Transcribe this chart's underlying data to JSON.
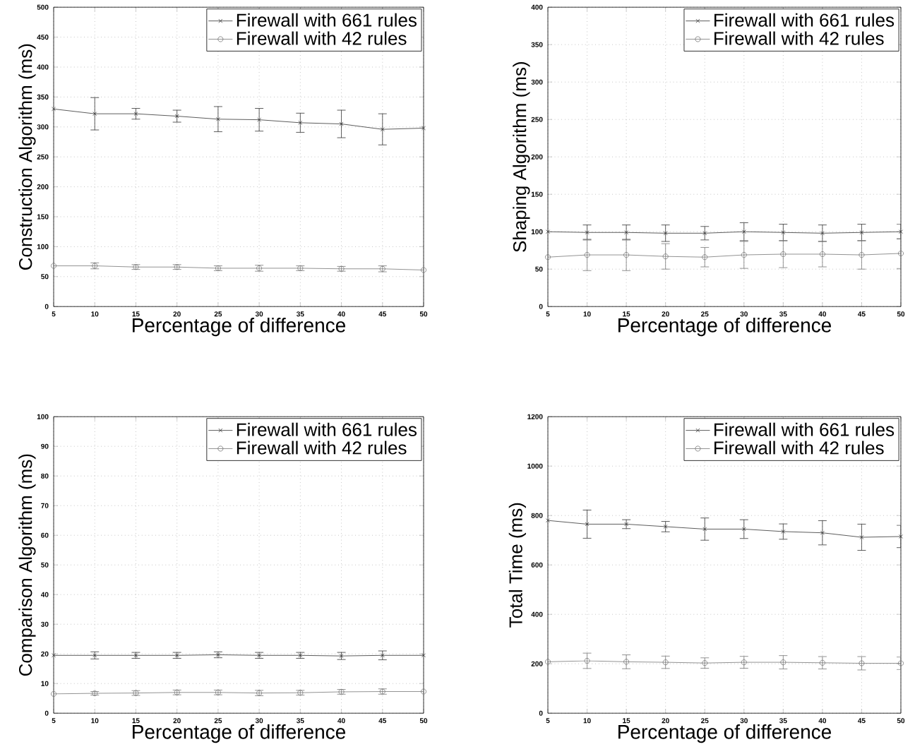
{
  "chart_data": [
    {
      "type": "line",
      "xlabel": "Percentage of difference",
      "ylabel": "Construction Algorithm (ms)",
      "x": [
        5,
        10,
        15,
        20,
        25,
        30,
        35,
        40,
        45,
        50
      ],
      "xlim": [
        5,
        50
      ],
      "xticks": [
        5,
        10,
        15,
        20,
        25,
        30,
        35,
        40,
        45,
        50
      ],
      "ylim": [
        0,
        500
      ],
      "yticks": [
        0,
        50,
        100,
        150,
        200,
        250,
        300,
        350,
        400,
        450,
        500
      ],
      "grid": true,
      "legend": "top right",
      "series": [
        {
          "name": "Firewall with 661 rules",
          "color": "#333333",
          "marker": "cross",
          "values": [
            330,
            322,
            322,
            318,
            313,
            312,
            307,
            305,
            296,
            298
          ],
          "errors": [
            null,
            27,
            9,
            10,
            21,
            19,
            16,
            23,
            26,
            null
          ]
        },
        {
          "name": "Firewall with 42 rules",
          "color": "#777777",
          "marker": "circle",
          "values": [
            68,
            68,
            66,
            66,
            64,
            64,
            64,
            63,
            63,
            61
          ],
          "errors": [
            null,
            5,
            4,
            4,
            4,
            5,
            4,
            4,
            5,
            null
          ]
        }
      ]
    },
    {
      "type": "line",
      "xlabel": "Percentage of difference",
      "ylabel": "Shaping Algorithm (ms)",
      "x": [
        5,
        10,
        15,
        20,
        25,
        30,
        35,
        40,
        45,
        50
      ],
      "xlim": [
        5,
        50
      ],
      "xticks": [
        5,
        10,
        15,
        20,
        25,
        30,
        35,
        40,
        45,
        50
      ],
      "ylim": [
        0,
        400
      ],
      "yticks": [
        0,
        50,
        100,
        150,
        200,
        250,
        300,
        350,
        400
      ],
      "grid": true,
      "legend": "top right",
      "series": [
        {
          "name": "Firewall with 661 rules",
          "color": "#333333",
          "marker": "cross",
          "values": [
            100,
            99,
            99,
            98,
            98,
            100,
            99,
            98,
            99,
            100
          ],
          "errors": [
            null,
            10,
            10,
            11,
            9,
            12,
            11,
            11,
            11,
            10
          ]
        },
        {
          "name": "Firewall with 42 rules",
          "color": "#777777",
          "marker": "circle",
          "values": [
            66,
            69,
            69,
            67,
            66,
            69,
            70,
            70,
            69,
            71
          ],
          "errors": [
            null,
            21,
            21,
            17,
            13,
            18,
            18,
            17,
            19,
            20
          ]
        }
      ]
    },
    {
      "type": "line",
      "xlabel": "Percentage of difference",
      "ylabel": "Comparison Algorithm (ms)",
      "x": [
        5,
        10,
        15,
        20,
        25,
        30,
        35,
        40,
        45,
        50
      ],
      "xlim": [
        5,
        50
      ],
      "xticks": [
        5,
        10,
        15,
        20,
        25,
        30,
        35,
        40,
        45,
        50
      ],
      "ylim": [
        0,
        100
      ],
      "yticks": [
        0,
        10,
        20,
        30,
        40,
        50,
        60,
        70,
        80,
        90,
        100
      ],
      "grid": true,
      "legend": "top right",
      "series": [
        {
          "name": "Firewall with 661 rules",
          "color": "#333333",
          "marker": "cross",
          "values": [
            19.5,
            19.5,
            19.5,
            19.5,
            19.7,
            19.5,
            19.5,
            19.3,
            19.5,
            19.5
          ],
          "errors": [
            null,
            1.2,
            1,
            1,
            1,
            1,
            1,
            1.2,
            1.5,
            null
          ]
        },
        {
          "name": "Firewall with 42 rules",
          "color": "#777777",
          "marker": "circle",
          "values": [
            6.5,
            6.7,
            6.8,
            7,
            7,
            6.8,
            6.9,
            7.2,
            7.3,
            7.3
          ],
          "errors": [
            null,
            0.6,
            0.8,
            0.8,
            0.8,
            0.9,
            0.8,
            0.8,
            0.9,
            null
          ]
        }
      ]
    },
    {
      "type": "line",
      "xlabel": "Percentage of difference",
      "ylabel": "Total Time (ms)",
      "x": [
        5,
        10,
        15,
        20,
        25,
        30,
        35,
        40,
        45,
        50
      ],
      "xlim": [
        5,
        50
      ],
      "xticks": [
        5,
        10,
        15,
        20,
        25,
        30,
        35,
        40,
        45,
        50
      ],
      "ylim": [
        0,
        1200
      ],
      "yticks": [
        0,
        200,
        400,
        600,
        800,
        1000,
        1200
      ],
      "grid": true,
      "legend": "top right",
      "series": [
        {
          "name": "Firewall with 661 rules",
          "color": "#333333",
          "marker": "cross",
          "values": [
            780,
            765,
            765,
            755,
            745,
            745,
            735,
            730,
            712,
            715
          ],
          "errors": [
            null,
            57,
            18,
            21,
            45,
            38,
            31,
            49,
            53,
            45
          ]
        },
        {
          "name": "Firewall with 42 rules",
          "color": "#777777",
          "marker": "circle",
          "values": [
            208,
            212,
            208,
            206,
            203,
            206,
            206,
            204,
            202,
            202
          ],
          "errors": [
            null,
            31,
            28,
            25,
            21,
            24,
            27,
            25,
            27,
            25
          ]
        }
      ]
    }
  ]
}
